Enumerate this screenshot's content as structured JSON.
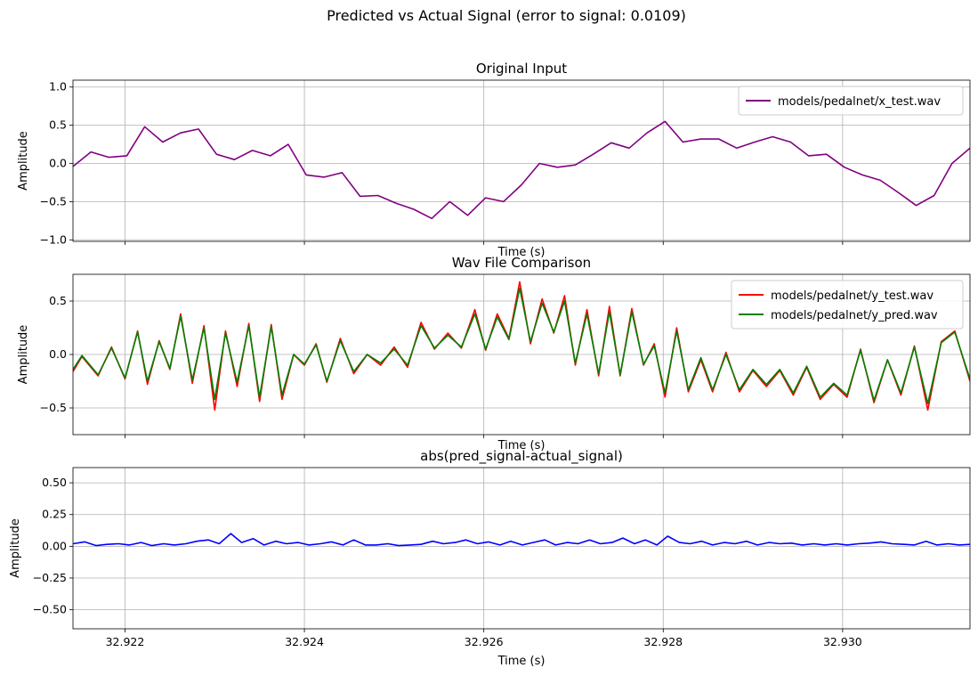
{
  "figure": {
    "suptitle": "Predicted vs Actual Signal (error to signal: 0.0109)"
  },
  "chart_data": [
    {
      "type": "line",
      "title": "Original Input",
      "xlabel": "Time (s)",
      "ylabel": "Amplitude",
      "xlim": [
        32.92142,
        32.93142
      ],
      "ylim": [
        -1.02,
        1.09
      ],
      "yticks": [
        -1.0,
        -0.5,
        0.0,
        0.5,
        1.0
      ],
      "ytick_labels": [
        "−1.0",
        "−0.5",
        "0.0",
        "0.5",
        "1.0"
      ],
      "xticks": [
        32.922,
        32.924,
        32.926,
        32.928,
        32.93
      ],
      "xtick_labels": [],
      "grid": true,
      "legend_loc": "upper right",
      "series": [
        {
          "name": "models/pedalnet/x_test.wav",
          "color": "#800080",
          "x": [
            32.92142,
            32.92162,
            32.92182,
            32.92202,
            32.92222,
            32.92242,
            32.92262,
            32.92282,
            32.92302,
            32.92322,
            32.92342,
            32.92362,
            32.92382,
            32.92402,
            32.92422,
            32.92442,
            32.92462,
            32.92482,
            32.92502,
            32.92522,
            32.92542,
            32.92562,
            32.92582,
            32.92602,
            32.92622,
            32.92642,
            32.92662,
            32.92682,
            32.92702,
            32.92722,
            32.92742,
            32.92762,
            32.92782,
            32.92802,
            32.92822,
            32.92842,
            32.92862,
            32.92882,
            32.92902,
            32.92922,
            32.92942,
            32.92962,
            32.92982,
            32.93002,
            32.93022,
            32.93042,
            32.93062,
            32.93082,
            32.93102,
            32.93122,
            32.93142
          ],
          "y": [
            -0.04,
            0.15,
            0.08,
            0.1,
            0.48,
            0.28,
            0.4,
            0.45,
            0.12,
            0.05,
            0.17,
            0.1,
            0.25,
            -0.15,
            -0.18,
            -0.12,
            -0.43,
            -0.42,
            -0.52,
            -0.6,
            -0.72,
            -0.5,
            -0.68,
            -0.45,
            -0.5,
            -0.28,
            0.0,
            -0.05,
            -0.02,
            0.12,
            0.27,
            0.2,
            0.4,
            0.55,
            0.28,
            0.32,
            0.32,
            0.2,
            0.28,
            0.35,
            0.28,
            0.1,
            0.12,
            -0.05,
            -0.15,
            -0.22,
            -0.38,
            -0.55,
            -0.42,
            0.0,
            0.2
          ]
        }
      ]
    },
    {
      "type": "line",
      "title": "Wav File Comparison",
      "xlabel": "Time (s)",
      "ylabel": "Amplitude",
      "xlim": [
        32.92142,
        32.93142
      ],
      "ylim": [
        -0.75,
        0.75
      ],
      "yticks": [
        -0.5,
        0.0,
        0.5
      ],
      "ytick_labels": [
        "−0.5",
        "0.0",
        "0.5"
      ],
      "xticks": [
        32.922,
        32.924,
        32.926,
        32.928,
        32.93
      ],
      "xtick_labels": [],
      "grid": true,
      "legend_loc": "upper right",
      "series": [
        {
          "name": "models/pedalnet/y_test.wav",
          "color": "#ff0000",
          "x": [
            32.92142,
            32.92152,
            32.9217,
            32.92185,
            32.922,
            32.92214,
            32.92225,
            32.92238,
            32.9225,
            32.92262,
            32.92275,
            32.92288,
            32.923,
            32.92312,
            32.92325,
            32.92338,
            32.9235,
            32.92363,
            32.92375,
            32.92388,
            32.924,
            32.92413,
            32.92425,
            32.9244,
            32.92455,
            32.9247,
            32.92485,
            32.925,
            32.92515,
            32.9253,
            32.92545,
            32.9256,
            32.92575,
            32.9259,
            32.92602,
            32.92615,
            32.92628,
            32.9264,
            32.92652,
            32.92665,
            32.92678,
            32.9269,
            32.92702,
            32.92715,
            32.92728,
            32.9274,
            32.92752,
            32.92765,
            32.92778,
            32.9279,
            32.92802,
            32.92815,
            32.92828,
            32.92842,
            32.92855,
            32.9287,
            32.92885,
            32.929,
            32.92915,
            32.9293,
            32.92945,
            32.9296,
            32.92975,
            32.9299,
            32.93005,
            32.9302,
            32.93035,
            32.9305,
            32.93065,
            32.9308,
            32.93095,
            32.9311,
            32.93125,
            32.93142
          ],
          "y": [
            -0.16,
            -0.02,
            -0.2,
            0.07,
            -0.23,
            0.22,
            -0.28,
            0.13,
            -0.14,
            0.38,
            -0.27,
            0.27,
            -0.52,
            0.22,
            -0.3,
            0.29,
            -0.44,
            0.28,
            -0.42,
            0.0,
            -0.1,
            0.1,
            -0.26,
            0.15,
            -0.18,
            0.0,
            -0.1,
            0.07,
            -0.12,
            0.3,
            0.05,
            0.2,
            0.06,
            0.42,
            0.04,
            0.38,
            0.15,
            0.68,
            0.1,
            0.52,
            0.2,
            0.55,
            -0.1,
            0.42,
            -0.2,
            0.45,
            -0.2,
            0.43,
            -0.1,
            0.1,
            -0.4,
            0.25,
            -0.35,
            -0.05,
            -0.35,
            0.02,
            -0.35,
            -0.15,
            -0.3,
            -0.15,
            -0.38,
            -0.12,
            -0.42,
            -0.28,
            -0.4,
            0.05,
            -0.45,
            -0.05,
            -0.38,
            0.08,
            -0.52,
            0.12,
            0.22,
            -0.25
          ]
        },
        {
          "name": "models/pedalnet/y_pred.wav",
          "color": "#008000",
          "x": [
            32.92142,
            32.92152,
            32.9217,
            32.92185,
            32.922,
            32.92214,
            32.92225,
            32.92238,
            32.9225,
            32.92262,
            32.92275,
            32.92288,
            32.923,
            32.92312,
            32.92325,
            32.92338,
            32.9235,
            32.92363,
            32.92375,
            32.92388,
            32.924,
            32.92413,
            32.92425,
            32.9244,
            32.92455,
            32.9247,
            32.92485,
            32.925,
            32.92515,
            32.9253,
            32.92545,
            32.9256,
            32.92575,
            32.9259,
            32.92602,
            32.92615,
            32.92628,
            32.9264,
            32.92652,
            32.92665,
            32.92678,
            32.9269,
            32.92702,
            32.92715,
            32.92728,
            32.9274,
            32.92752,
            32.92765,
            32.92778,
            32.9279,
            32.92802,
            32.92815,
            32.92828,
            32.92842,
            32.92855,
            32.9287,
            32.92885,
            32.929,
            32.92915,
            32.9293,
            32.92945,
            32.9296,
            32.92975,
            32.9299,
            32.93005,
            32.9302,
            32.93035,
            32.9305,
            32.93065,
            32.9308,
            32.93095,
            32.9311,
            32.93125,
            32.93142
          ],
          "y": [
            -0.14,
            -0.01,
            -0.19,
            0.06,
            -0.22,
            0.21,
            -0.25,
            0.12,
            -0.13,
            0.36,
            -0.24,
            0.25,
            -0.42,
            0.2,
            -0.26,
            0.27,
            -0.4,
            0.26,
            -0.38,
            0.0,
            -0.09,
            0.09,
            -0.25,
            0.13,
            -0.16,
            0.0,
            -0.08,
            0.05,
            -0.1,
            0.27,
            0.06,
            0.18,
            0.07,
            0.38,
            0.05,
            0.35,
            0.14,
            0.62,
            0.12,
            0.48,
            0.21,
            0.5,
            -0.08,
            0.38,
            -0.18,
            0.4,
            -0.19,
            0.4,
            -0.09,
            0.08,
            -0.36,
            0.22,
            -0.33,
            -0.03,
            -0.33,
            0.0,
            -0.33,
            -0.14,
            -0.28,
            -0.14,
            -0.36,
            -0.11,
            -0.4,
            -0.27,
            -0.38,
            0.04,
            -0.43,
            -0.05,
            -0.36,
            0.07,
            -0.46,
            0.11,
            0.21,
            -0.23
          ]
        }
      ]
    },
    {
      "type": "line",
      "title": "abs(pred_signal-actual_signal)",
      "xlabel": "Time (s)",
      "ylabel": "Amplitude",
      "xlim": [
        32.92142,
        32.93142
      ],
      "ylim": [
        -0.65,
        0.62
      ],
      "yticks": [
        -0.5,
        -0.25,
        0.0,
        0.25,
        0.5
      ],
      "ytick_labels": [
        "−0.50",
        "−0.25",
        "0.00",
        "0.25",
        "0.50"
      ],
      "xticks": [
        32.922,
        32.924,
        32.926,
        32.928,
        32.93
      ],
      "xtick_labels": [
        "32.922",
        "32.924",
        "32.926",
        "32.928",
        "32.930"
      ],
      "grid": true,
      "legend_loc": "none",
      "series": [
        {
          "color": "#0000ff",
          "x": [
            32.92142,
            32.92155,
            32.92168,
            32.9218,
            32.92193,
            32.92205,
            32.92218,
            32.9223,
            32.92243,
            32.92255,
            32.92268,
            32.9228,
            32.92293,
            32.92305,
            32.92318,
            32.9233,
            32.92343,
            32.92355,
            32.92368,
            32.9238,
            32.92393,
            32.92405,
            32.92418,
            32.9243,
            32.92443,
            32.92455,
            32.92468,
            32.9248,
            32.92493,
            32.92505,
            32.92518,
            32.9253,
            32.92543,
            32.92555,
            32.92568,
            32.9258,
            32.92593,
            32.92605,
            32.92618,
            32.9263,
            32.92643,
            32.92655,
            32.92668,
            32.9268,
            32.92693,
            32.92705,
            32.92718,
            32.9273,
            32.92743,
            32.92755,
            32.92768,
            32.9278,
            32.92793,
            32.92805,
            32.92818,
            32.9283,
            32.92843,
            32.92855,
            32.92868,
            32.9288,
            32.92893,
            32.92905,
            32.92918,
            32.9293,
            32.92943,
            32.92955,
            32.92968,
            32.9298,
            32.92993,
            32.93005,
            32.93018,
            32.9303,
            32.93043,
            32.93055,
            32.93068,
            32.9308,
            32.93093,
            32.93105,
            32.93118,
            32.9313,
            32.93142
          ],
          "y": [
            0.02,
            0.035,
            0.005,
            0.015,
            0.02,
            0.01,
            0.03,
            0.005,
            0.02,
            0.01,
            0.02,
            0.04,
            0.05,
            0.02,
            0.1,
            0.03,
            0.06,
            0.01,
            0.04,
            0.02,
            0.03,
            0.01,
            0.02,
            0.035,
            0.01,
            0.05,
            0.01,
            0.01,
            0.02,
            0.005,
            0.01,
            0.015,
            0.04,
            0.02,
            0.03,
            0.05,
            0.02,
            0.035,
            0.01,
            0.04,
            0.01,
            0.03,
            0.05,
            0.01,
            0.03,
            0.02,
            0.05,
            0.02,
            0.03,
            0.065,
            0.02,
            0.05,
            0.01,
            0.08,
            0.03,
            0.02,
            0.04,
            0.01,
            0.03,
            0.02,
            0.04,
            0.01,
            0.03,
            0.02,
            0.025,
            0.01,
            0.02,
            0.01,
            0.02,
            0.01,
            0.02,
            0.025,
            0.035,
            0.02,
            0.015,
            0.01,
            0.04,
            0.01,
            0.02,
            0.01,
            0.015
          ]
        }
      ]
    }
  ]
}
